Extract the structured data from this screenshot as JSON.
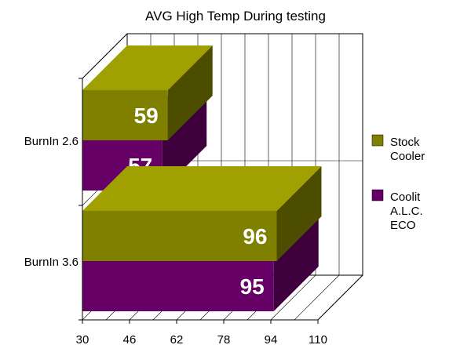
{
  "chart_data": {
    "type": "bar",
    "orientation": "horizontal",
    "three_d": true,
    "title": "AVG High Temp During testing",
    "xlabel": "",
    "ylabel": "",
    "xlim": [
      30,
      110
    ],
    "x_ticks": [
      "30",
      "46",
      "62",
      "78",
      "94",
      "110"
    ],
    "categories": [
      "BurnIn 2.6",
      "BurnIn  3.6"
    ],
    "series": [
      {
        "name": "Stock Cooler",
        "values": [
          59,
          96
        ],
        "color": "#808000"
      },
      {
        "name": "Coolit A.L.C. ECO",
        "values": [
          57,
          95
        ],
        "color": "#660066"
      }
    ],
    "legend": {
      "position": "right",
      "items": [
        {
          "lines": [
            "Stock",
            "Cooler"
          ]
        },
        {
          "lines": [
            "Coolit",
            "A.L.C.",
            "ECO"
          ]
        }
      ]
    },
    "grid": true
  }
}
